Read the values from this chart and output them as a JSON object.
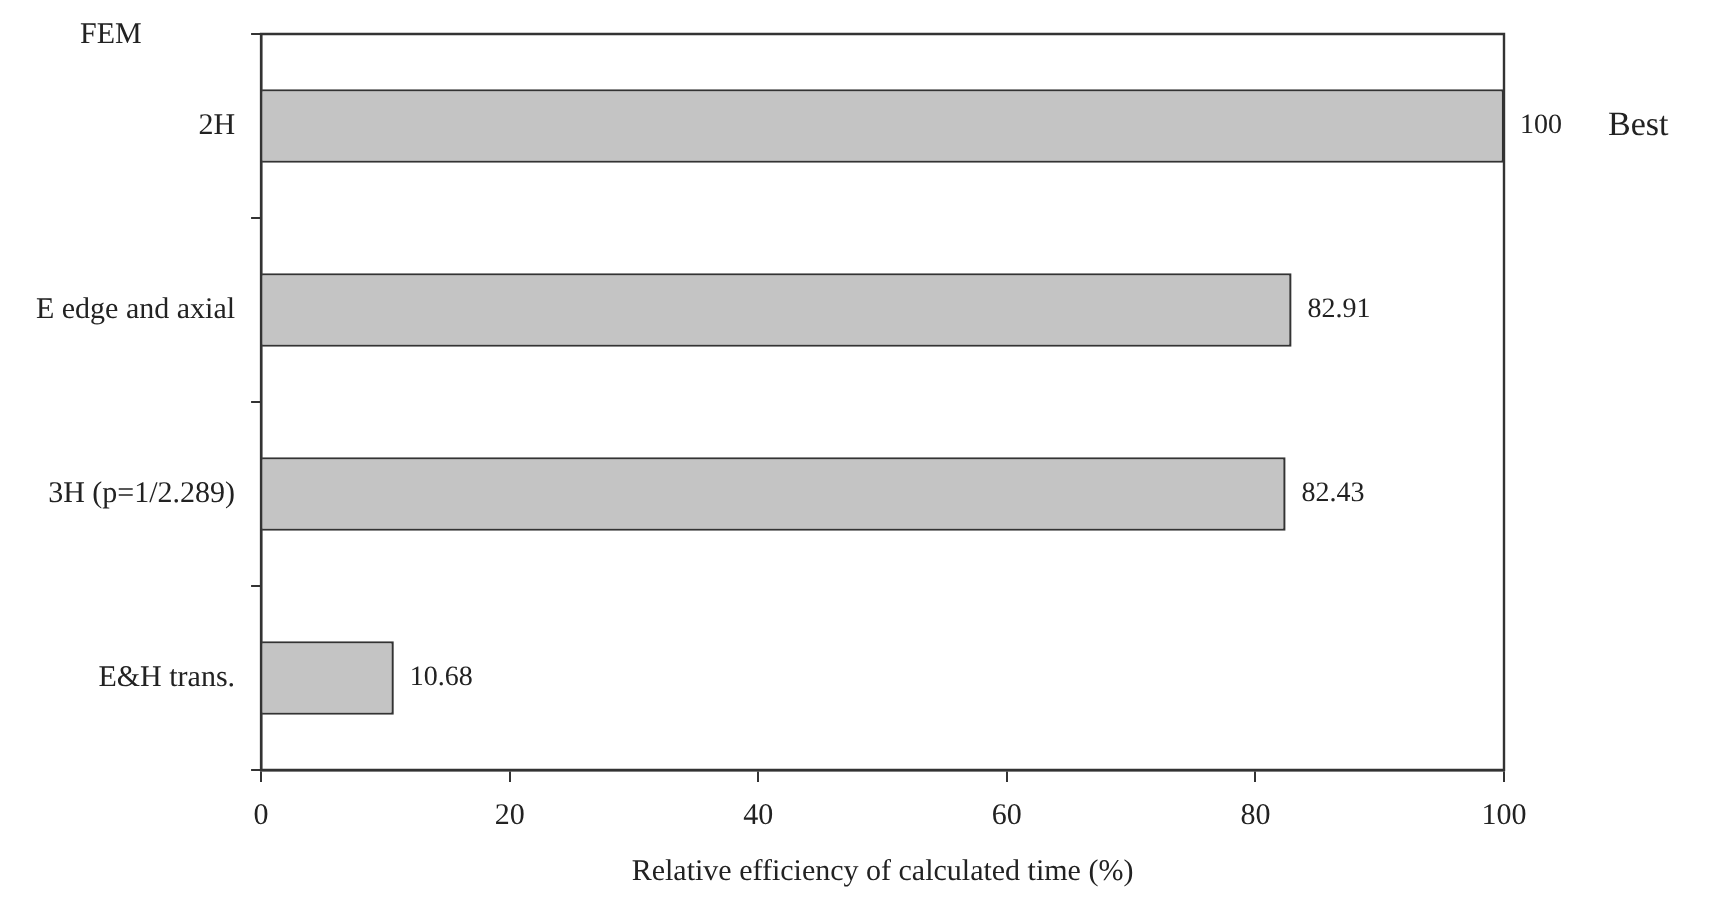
{
  "chart_data": {
    "type": "bar",
    "orientation": "horizontal",
    "categories": [
      "2H",
      "E edge and axial",
      "3H (p=1/2.289)",
      "E&H trans."
    ],
    "values": [
      100,
      82.91,
      82.43,
      10.68
    ],
    "color": "#c4c4c4",
    "xlabel": "Relative efficiency of calculated time (%)",
    "ylabel": "FEM",
    "xlim": [
      0,
      100
    ],
    "xticks": [
      0,
      20,
      40,
      60,
      80,
      100
    ],
    "data_labels": true,
    "grid": false,
    "legend": false,
    "annotations": [
      "Best"
    ]
  }
}
